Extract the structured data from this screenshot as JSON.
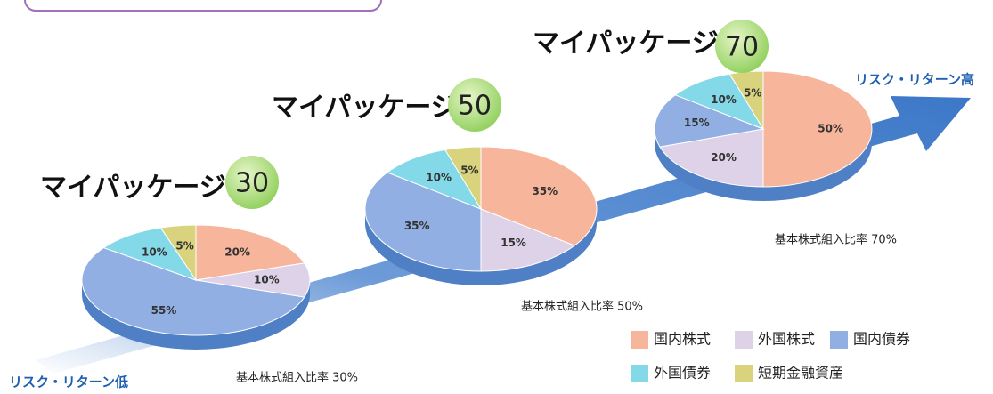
{
  "chart_data": [
    {
      "type": "pie",
      "title": "マイパッケージ",
      "badge": "30",
      "caption": "基本株式組入比率 30%",
      "categories": [
        "国内株式",
        "外国株式",
        "国内債券",
        "外国債券",
        "短期金融資産"
      ],
      "colors": [
        "#f7b69c",
        "#ddd2e8",
        "#91afe2",
        "#84d9e8",
        "#d8d37c"
      ],
      "values": [
        20,
        10,
        55,
        10,
        5
      ],
      "value_labels": [
        "20%",
        "10%",
        "55%",
        "10%",
        "5%"
      ]
    },
    {
      "type": "pie",
      "title": "マイパッケージ",
      "badge": "50",
      "caption": "基本株式組入比率 50%",
      "categories": [
        "国内株式",
        "外国株式",
        "国内債券",
        "外国債券",
        "短期金融資産"
      ],
      "colors": [
        "#f7b69c",
        "#ddd2e8",
        "#91afe2",
        "#84d9e8",
        "#d8d37c"
      ],
      "values": [
        35,
        15,
        35,
        10,
        5
      ],
      "value_labels": [
        "35%",
        "15%",
        "35%",
        "10%",
        "5%"
      ]
    },
    {
      "type": "pie",
      "title": "マイパッケージ",
      "badge": "70",
      "caption": "基本株式組入比率 70%",
      "categories": [
        "国内株式",
        "外国株式",
        "国内債券",
        "外国債券",
        "短期金融資産"
      ],
      "colors": [
        "#f7b69c",
        "#ddd2e8",
        "#91afe2",
        "#84d9e8",
        "#d8d37c"
      ],
      "values": [
        50,
        20,
        15,
        10,
        5
      ],
      "value_labels": [
        "50%",
        "20%",
        "15%",
        "10%",
        "5%"
      ]
    }
  ],
  "annotations": {
    "risk_low": "リスク・リターン低",
    "risk_high": "リスク・リターン高"
  }
}
